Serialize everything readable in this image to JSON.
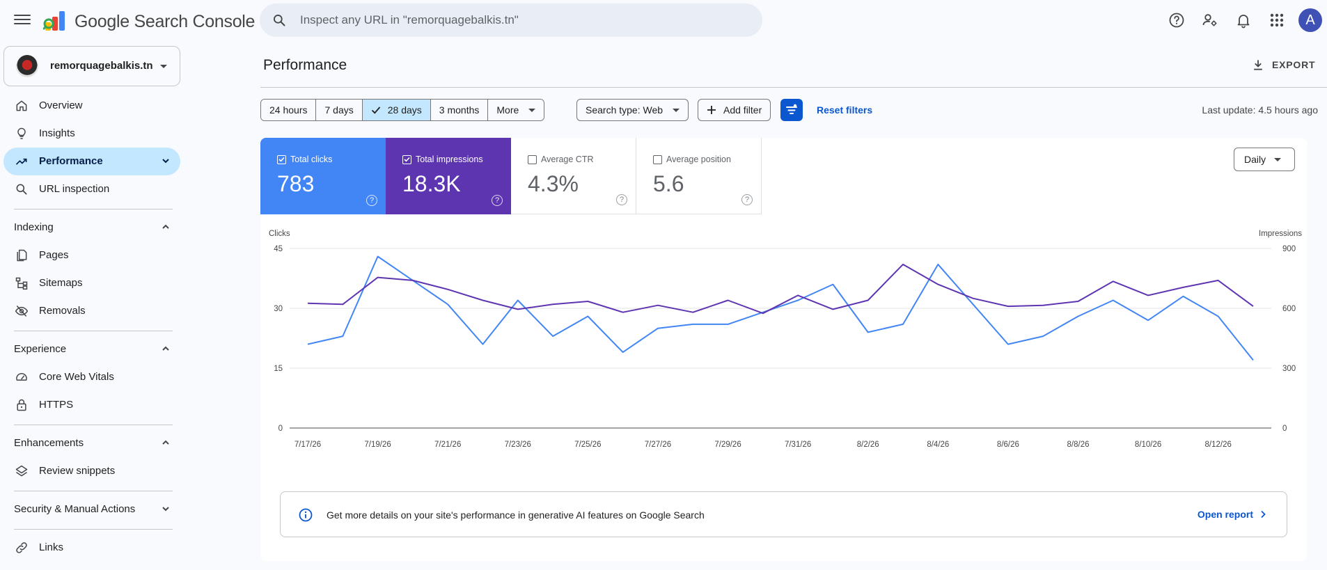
{
  "app": {
    "brand_google": "Google",
    "brand_product": "Search Console"
  },
  "search": {
    "placeholder": "Inspect any URL in \"remorquagebalkis.tn\""
  },
  "header_icons": [
    "help-icon",
    "manage-accounts-icon",
    "notifications-icon",
    "apps-grid-icon"
  ],
  "user": {
    "avatar_letter": "A",
    "avatar_color": "#3f51b5"
  },
  "property": {
    "name": "remorquagebalkis.tn"
  },
  "sidebar": {
    "top_items": [
      {
        "label": "Overview",
        "icon": "home-icon"
      },
      {
        "label": "Insights",
        "icon": "lightbulb-icon"
      },
      {
        "label": "Performance",
        "icon": "trending-up-icon",
        "active": true
      },
      {
        "label": "URL inspection",
        "icon": "search-icon"
      }
    ],
    "sections": [
      {
        "title": "Indexing",
        "expanded": true,
        "items": [
          {
            "label": "Pages",
            "icon": "pages-icon"
          },
          {
            "label": "Sitemaps",
            "icon": "sitemap-icon"
          },
          {
            "label": "Removals",
            "icon": "visibility-off-icon"
          }
        ]
      },
      {
        "title": "Experience",
        "expanded": true,
        "items": [
          {
            "label": "Core Web Vitals",
            "icon": "speed-icon"
          },
          {
            "label": "HTTPS",
            "icon": "lock-icon"
          }
        ]
      },
      {
        "title": "Enhancements",
        "expanded": true,
        "items": [
          {
            "label": "Review snippets",
            "icon": "layers-icon"
          }
        ]
      },
      {
        "title": "Security & Manual Actions",
        "expanded": false,
        "items": []
      }
    ],
    "bottom_items": [
      {
        "label": "Links",
        "icon": "link-icon"
      }
    ]
  },
  "main": {
    "title": "Performance",
    "export_label": "EXPORT",
    "date_ranges": [
      "24 hours",
      "7 days",
      "28 days",
      "3 months",
      "More"
    ],
    "selected_range": "28 days",
    "search_type": "Search type: Web",
    "add_filter": "Add filter",
    "reset_filters": "Reset filters",
    "last_update": "Last update: 4.5 hours ago",
    "granularity": "Daily"
  },
  "metrics": [
    {
      "label": "Total clicks",
      "value": "783",
      "checked": true,
      "color": "#4285f4"
    },
    {
      "label": "Total impressions",
      "value": "18.3K",
      "checked": true,
      "color": "#5e35b1"
    },
    {
      "label": "Average CTR",
      "value": "4.3%",
      "checked": false
    },
    {
      "label": "Average position",
      "value": "5.6",
      "checked": false
    }
  ],
  "chart_data": {
    "type": "line",
    "x": [
      "7/17/26",
      "7/18/26",
      "7/19/26",
      "7/20/26",
      "7/21/26",
      "7/22/26",
      "7/23/26",
      "7/24/26",
      "7/25/26",
      "7/26/26",
      "7/27/26",
      "7/28/26",
      "7/29/26",
      "7/30/26",
      "7/31/26",
      "8/1/26",
      "8/2/26",
      "8/3/26",
      "8/4/26",
      "8/5/26",
      "8/6/26",
      "8/7/26",
      "8/8/26",
      "8/9/26",
      "8/10/26",
      "8/11/26",
      "8/12/26",
      "8/13/26"
    ],
    "x_tick_labels": [
      "7/17/26",
      "7/19/26",
      "7/21/26",
      "7/23/26",
      "7/25/26",
      "7/27/26",
      "7/29/26",
      "7/31/26",
      "8/2/26",
      "8/4/26",
      "8/6/26",
      "8/8/26",
      "8/10/26",
      "8/12/26"
    ],
    "series": [
      {
        "name": "Clicks",
        "axis": "left",
        "color": "#4285f4",
        "values": [
          21,
          23,
          43,
          37,
          31,
          21,
          32,
          23,
          28,
          19,
          25,
          26,
          26,
          29,
          32,
          36,
          24,
          26,
          41,
          31,
          21,
          23,
          28,
          32,
          27,
          33,
          28,
          17
        ]
      },
      {
        "name": "Impressions",
        "axis": "right",
        "color": "#5e35b1",
        "values": [
          625,
          620,
          755,
          740,
          695,
          640,
          595,
          620,
          635,
          580,
          615,
          580,
          640,
          575,
          665,
          595,
          640,
          820,
          720,
          650,
          610,
          615,
          635,
          735,
          665,
          705,
          740,
          610
        ]
      }
    ],
    "y_left": {
      "label": "Clicks",
      "ticks": [
        0,
        15,
        30,
        45
      ],
      "range": [
        0,
        45
      ]
    },
    "y_right": {
      "label": "Impressions",
      "ticks": [
        0,
        300,
        600,
        900
      ],
      "range": [
        0,
        900
      ]
    }
  },
  "banner": {
    "text": "Get more details on your site's performance in generative AI features on Google Search",
    "link": "Open report"
  }
}
